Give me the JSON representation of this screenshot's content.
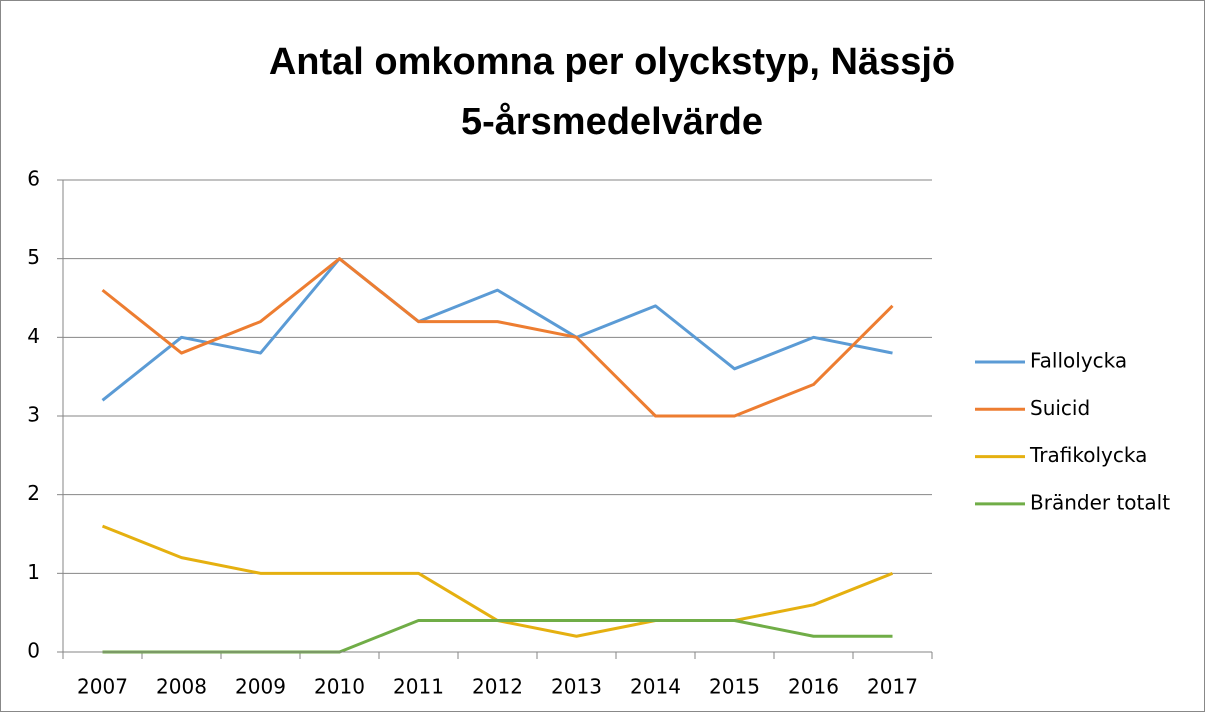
{
  "chart_data": {
    "type": "line",
    "title": "Antal omkomna per olyckstyp, Nässjö",
    "subtitle": "5-årsmedelvärde",
    "categories": [
      "2007",
      "2008",
      "2009",
      "2010",
      "2011",
      "2012",
      "2013",
      "2014",
      "2015",
      "2016",
      "2017"
    ],
    "series": [
      {
        "name": "Fallolycka",
        "color": "#5b9bd5",
        "values": [
          3.2,
          4.0,
          3.8,
          5.0,
          4.2,
          4.6,
          4.0,
          4.4,
          3.6,
          4.0,
          3.8
        ]
      },
      {
        "name": "Suicid",
        "color": "#ed7d31",
        "values": [
          4.6,
          3.8,
          4.2,
          5.0,
          4.2,
          4.2,
          4.0,
          3.0,
          3.0,
          3.4,
          4.4
        ]
      },
      {
        "name": "Trafikolycka",
        "color": "#e5b010",
        "values": [
          1.6,
          1.2,
          1.0,
          1.0,
          1.0,
          0.4,
          0.2,
          0.4,
          0.4,
          0.6,
          1.0
        ]
      },
      {
        "name": "Bränder totalt",
        "color": "#70ad47",
        "values": [
          0,
          0,
          0,
          0,
          0.4,
          0.4,
          0.4,
          0.4,
          0.4,
          0.2,
          0.2
        ]
      }
    ],
    "ylim": [
      0,
      6
    ],
    "yticks": [
      0,
      1,
      2,
      3,
      4,
      5,
      6
    ],
    "grid": true,
    "legend": "right"
  }
}
